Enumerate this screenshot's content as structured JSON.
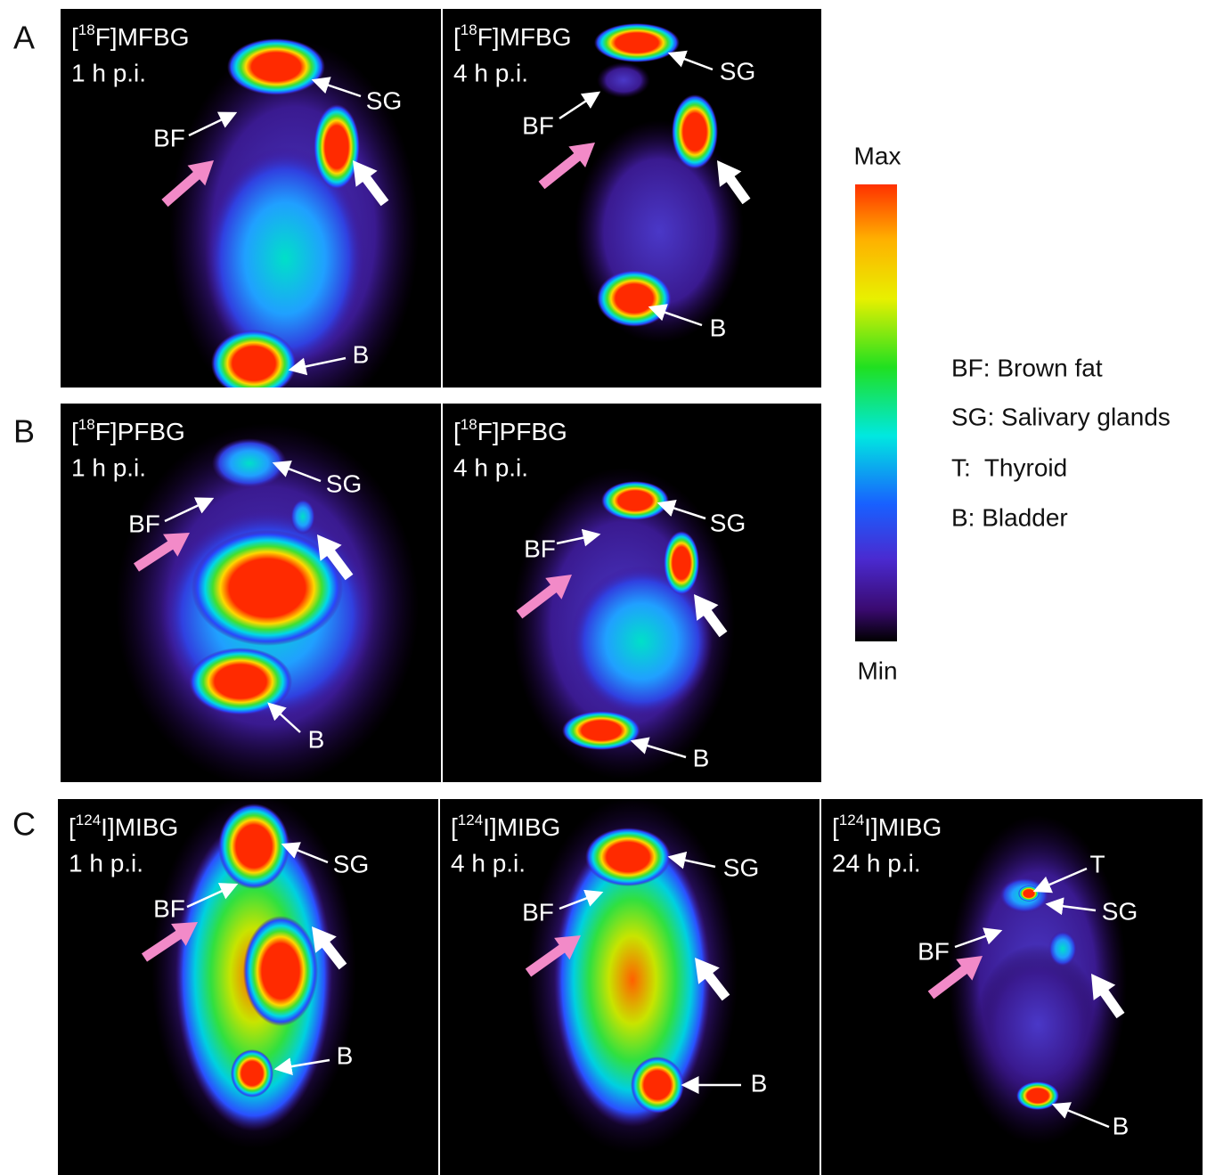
{
  "figure": {
    "rows": [
      {
        "label": "A",
        "panels": [
          {
            "tracer": {
              "before": "[",
              "mass": "18",
              "after": "F]MFBG"
            },
            "time": "1 h p.i.",
            "labels": [
              "SG",
              "BF",
              "B"
            ]
          },
          {
            "tracer": {
              "before": "[",
              "mass": "18",
              "after": "F]MFBG"
            },
            "time": "4 h p.i.",
            "labels": [
              "SG",
              "BF",
              "B"
            ]
          }
        ]
      },
      {
        "label": "B",
        "panels": [
          {
            "tracer": {
              "before": "[",
              "mass": "18",
              "after": "F]PFBG"
            },
            "time": "1 h p.i.",
            "labels": [
              "SG",
              "BF",
              "B"
            ]
          },
          {
            "tracer": {
              "before": "[",
              "mass": "18",
              "after": "F]PFBG"
            },
            "time": "4 h p.i.",
            "labels": [
              "SG",
              "BF",
              "B"
            ]
          }
        ]
      },
      {
        "label": "C",
        "panels": [
          {
            "tracer": {
              "before": "[",
              "mass": "124",
              "after": "I]MIBG"
            },
            "time": "1 h p.i.",
            "labels": [
              "SG",
              "BF",
              "B"
            ]
          },
          {
            "tracer": {
              "before": "[",
              "mass": "124",
              "after": "I]MIBG"
            },
            "time": "4 h p.i.",
            "labels": [
              "SG",
              "BF",
              "B"
            ]
          },
          {
            "tracer": {
              "before": "[",
              "mass": "124",
              "after": "I]MIBG"
            },
            "time": "24 h p.i.",
            "labels": [
              "T",
              "SG",
              "BF",
              "B"
            ]
          }
        ]
      }
    ],
    "colorbar": {
      "max": "Max",
      "min": "Min"
    },
    "legend": [
      "BF: Brown fat",
      "SG: Salivary glands",
      "T:  Thyroid",
      "B: Bladder"
    ]
  }
}
